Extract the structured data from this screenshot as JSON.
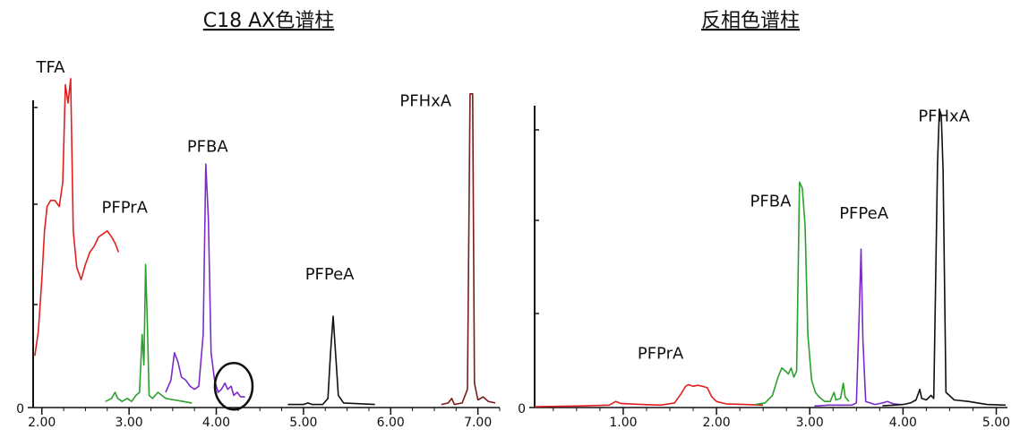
{
  "chart_data": [
    {
      "type": "line",
      "title": "C18 AX色谱柱",
      "x_ticks": [
        "2.00",
        "3.00",
        "4.00",
        "5.00",
        "6.00",
        "7.00"
      ],
      "xlim": [
        1.9,
        7.25
      ],
      "y_tick_label": "0",
      "ylim": [
        0,
        100
      ],
      "peak_labels": [
        {
          "text": "TFA",
          "x": 2.1,
          "y": 110
        },
        {
          "text": "PFPrA",
          "x": 2.95,
          "y": 64
        },
        {
          "text": "PFBA",
          "x": 3.9,
          "y": 84
        },
        {
          "text": "PFPeA",
          "x": 5.3,
          "y": 42
        },
        {
          "text": "PFHxA",
          "x": 6.4,
          "y": 99
        }
      ],
      "annotation": {
        "type": "circle",
        "center_x": 4.2,
        "center_y": 7,
        "note": "highlighted small peak region"
      },
      "series": [
        {
          "color": "#e02020",
          "points": [
            [
              1.92,
              17
            ],
            [
              1.96,
              25
            ],
            [
              2.0,
              42
            ],
            [
              2.03,
              58
            ],
            [
              2.06,
              66
            ],
            [
              2.1,
              68
            ],
            [
              2.15,
              68
            ],
            [
              2.2,
              66
            ],
            [
              2.24,
              74
            ],
            [
              2.27,
              106
            ],
            [
              2.3,
              100
            ],
            [
              2.33,
              108
            ],
            [
              2.36,
              58
            ],
            [
              2.4,
              46
            ],
            [
              2.45,
              42
            ],
            [
              2.5,
              47
            ],
            [
              2.55,
              51
            ],
            [
              2.6,
              53
            ],
            [
              2.65,
              56
            ],
            [
              2.7,
              57
            ],
            [
              2.75,
              58
            ],
            [
              2.8,
              56
            ],
            [
              2.84,
              54
            ],
            [
              2.88,
              51
            ]
          ]
        },
        {
          "color": "#2ca02c",
          "points": [
            [
              2.73,
              2
            ],
            [
              2.8,
              3
            ],
            [
              2.84,
              5
            ],
            [
              2.87,
              3
            ],
            [
              2.92,
              2
            ],
            [
              2.98,
              3
            ],
            [
              3.03,
              2
            ],
            [
              3.08,
              4
            ],
            [
              3.12,
              5
            ],
            [
              3.15,
              24
            ],
            [
              3.17,
              14
            ],
            [
              3.19,
              47
            ],
            [
              3.21,
              27
            ],
            [
              3.23,
              4
            ],
            [
              3.27,
              3
            ],
            [
              3.33,
              5
            ],
            [
              3.42,
              3
            ],
            [
              3.52,
              2.5
            ],
            [
              3.62,
              2
            ],
            [
              3.72,
              1.5
            ]
          ]
        },
        {
          "color": "#7a2bc8",
          "points": [
            [
              3.42,
              5
            ],
            [
              3.48,
              9
            ],
            [
              3.52,
              18
            ],
            [
              3.56,
              15
            ],
            [
              3.6,
              10
            ],
            [
              3.65,
              9
            ],
            [
              3.7,
              7
            ],
            [
              3.75,
              6
            ],
            [
              3.8,
              7
            ],
            [
              3.85,
              24
            ],
            [
              3.88,
              80
            ],
            [
              3.91,
              62
            ],
            [
              3.94,
              18
            ],
            [
              3.98,
              9
            ],
            [
              4.02,
              5
            ],
            [
              4.06,
              6
            ],
            [
              4.1,
              8
            ],
            [
              4.13,
              6
            ],
            [
              4.17,
              7
            ],
            [
              4.2,
              4
            ],
            [
              4.24,
              5
            ],
            [
              4.28,
              3.5
            ],
            [
              4.33,
              3.5
            ]
          ]
        },
        {
          "color": "#111111",
          "points": [
            [
              4.82,
              1
            ],
            [
              5.0,
              1
            ],
            [
              5.05,
              1.5
            ],
            [
              5.1,
              1
            ],
            [
              5.22,
              1
            ],
            [
              5.28,
              3
            ],
            [
              5.31,
              18
            ],
            [
              5.34,
              30
            ],
            [
              5.37,
              17
            ],
            [
              5.4,
              4
            ],
            [
              5.46,
              1.5
            ],
            [
              5.82,
              1
            ]
          ]
        },
        {
          "color": "#7b1c1c",
          "points": [
            [
              6.58,
              1
            ],
            [
              6.66,
              1.5
            ],
            [
              6.7,
              3
            ],
            [
              6.73,
              1
            ],
            [
              6.82,
              1.5
            ],
            [
              6.88,
              6
            ],
            [
              6.91,
              103
            ],
            [
              6.94,
              103
            ],
            [
              6.96,
              8
            ],
            [
              7.0,
              2.5
            ],
            [
              7.06,
              3.5
            ],
            [
              7.12,
              2
            ],
            [
              7.2,
              1.5
            ]
          ]
        }
      ]
    },
    {
      "type": "line",
      "title": "反相色谱柱",
      "x_ticks": [
        "1.00",
        "2.00",
        "3.00",
        "4.00",
        "5.00"
      ],
      "xlim": [
        0.05,
        5.12
      ],
      "y_tick_label": "0",
      "ylim": [
        0,
        100
      ],
      "peak_labels": [
        {
          "text": "PFPrA",
          "x": 1.4,
          "y": 16
        },
        {
          "text": "PFBA",
          "x": 2.58,
          "y": 66
        },
        {
          "text": "PFPeA",
          "x": 3.58,
          "y": 62
        },
        {
          "text": "PFHxA",
          "x": 4.44,
          "y": 94
        }
      ],
      "series": [
        {
          "color": "#e02020",
          "points": [
            [
              0.05,
              0.3
            ],
            [
              0.5,
              0.5
            ],
            [
              0.85,
              0.8
            ],
            [
              0.92,
              2
            ],
            [
              0.98,
              1.3
            ],
            [
              1.2,
              1
            ],
            [
              1.4,
              0.8
            ],
            [
              1.55,
              1.5
            ],
            [
              1.62,
              4.5
            ],
            [
              1.67,
              7
            ],
            [
              1.7,
              7.5
            ],
            [
              1.75,
              7
            ],
            [
              1.8,
              7.3
            ],
            [
              1.85,
              7
            ],
            [
              1.9,
              6.5
            ],
            [
              1.95,
              3.5
            ],
            [
              2.0,
              2
            ],
            [
              2.1,
              1.2
            ],
            [
              2.3,
              1
            ],
            [
              2.5,
              0.8
            ]
          ]
        },
        {
          "color": "#2ca02c",
          "points": [
            [
              2.42,
              1
            ],
            [
              2.52,
              1.5
            ],
            [
              2.6,
              4
            ],
            [
              2.66,
              10
            ],
            [
              2.7,
              13
            ],
            [
              2.74,
              12
            ],
            [
              2.77,
              11
            ],
            [
              2.8,
              13
            ],
            [
              2.83,
              10
            ],
            [
              2.86,
              12
            ],
            [
              2.89,
              74
            ],
            [
              2.92,
              72
            ],
            [
              2.95,
              60
            ],
            [
              2.98,
              24
            ],
            [
              3.02,
              9
            ],
            [
              3.06,
              5
            ],
            [
              3.1,
              3.5
            ],
            [
              3.16,
              2
            ],
            [
              3.22,
              2
            ],
            [
              3.26,
              5
            ],
            [
              3.28,
              2.5
            ],
            [
              3.33,
              3
            ],
            [
              3.36,
              8
            ],
            [
              3.38,
              3.5
            ],
            [
              3.42,
              2
            ]
          ]
        },
        {
          "color": "#7a2bc8",
          "points": [
            [
              3.05,
              0.5
            ],
            [
              3.2,
              0.8
            ],
            [
              3.35,
              0.8
            ],
            [
              3.45,
              0.8
            ],
            [
              3.5,
              1.5
            ],
            [
              3.53,
              30
            ],
            [
              3.55,
              52
            ],
            [
              3.57,
              22
            ],
            [
              3.6,
              2
            ],
            [
              3.7,
              1
            ],
            [
              3.78,
              1.5
            ],
            [
              3.83,
              2
            ],
            [
              3.9,
              1.2
            ],
            [
              3.97,
              1
            ]
          ]
        },
        {
          "color": "#111111",
          "points": [
            [
              3.78,
              0.6
            ],
            [
              3.9,
              0.8
            ],
            [
              4.0,
              1
            ],
            [
              4.08,
              1.5
            ],
            [
              4.14,
              2.5
            ],
            [
              4.18,
              6
            ],
            [
              4.2,
              3
            ],
            [
              4.25,
              2.5
            ],
            [
              4.3,
              4
            ],
            [
              4.33,
              3
            ],
            [
              4.37,
              80
            ],
            [
              4.39,
              98
            ],
            [
              4.41,
              96
            ],
            [
              4.43,
              78
            ],
            [
              4.46,
              5
            ],
            [
              4.55,
              2.5
            ],
            [
              4.7,
              2
            ],
            [
              4.9,
              1
            ],
            [
              5.1,
              0.8
            ]
          ]
        }
      ]
    }
  ]
}
